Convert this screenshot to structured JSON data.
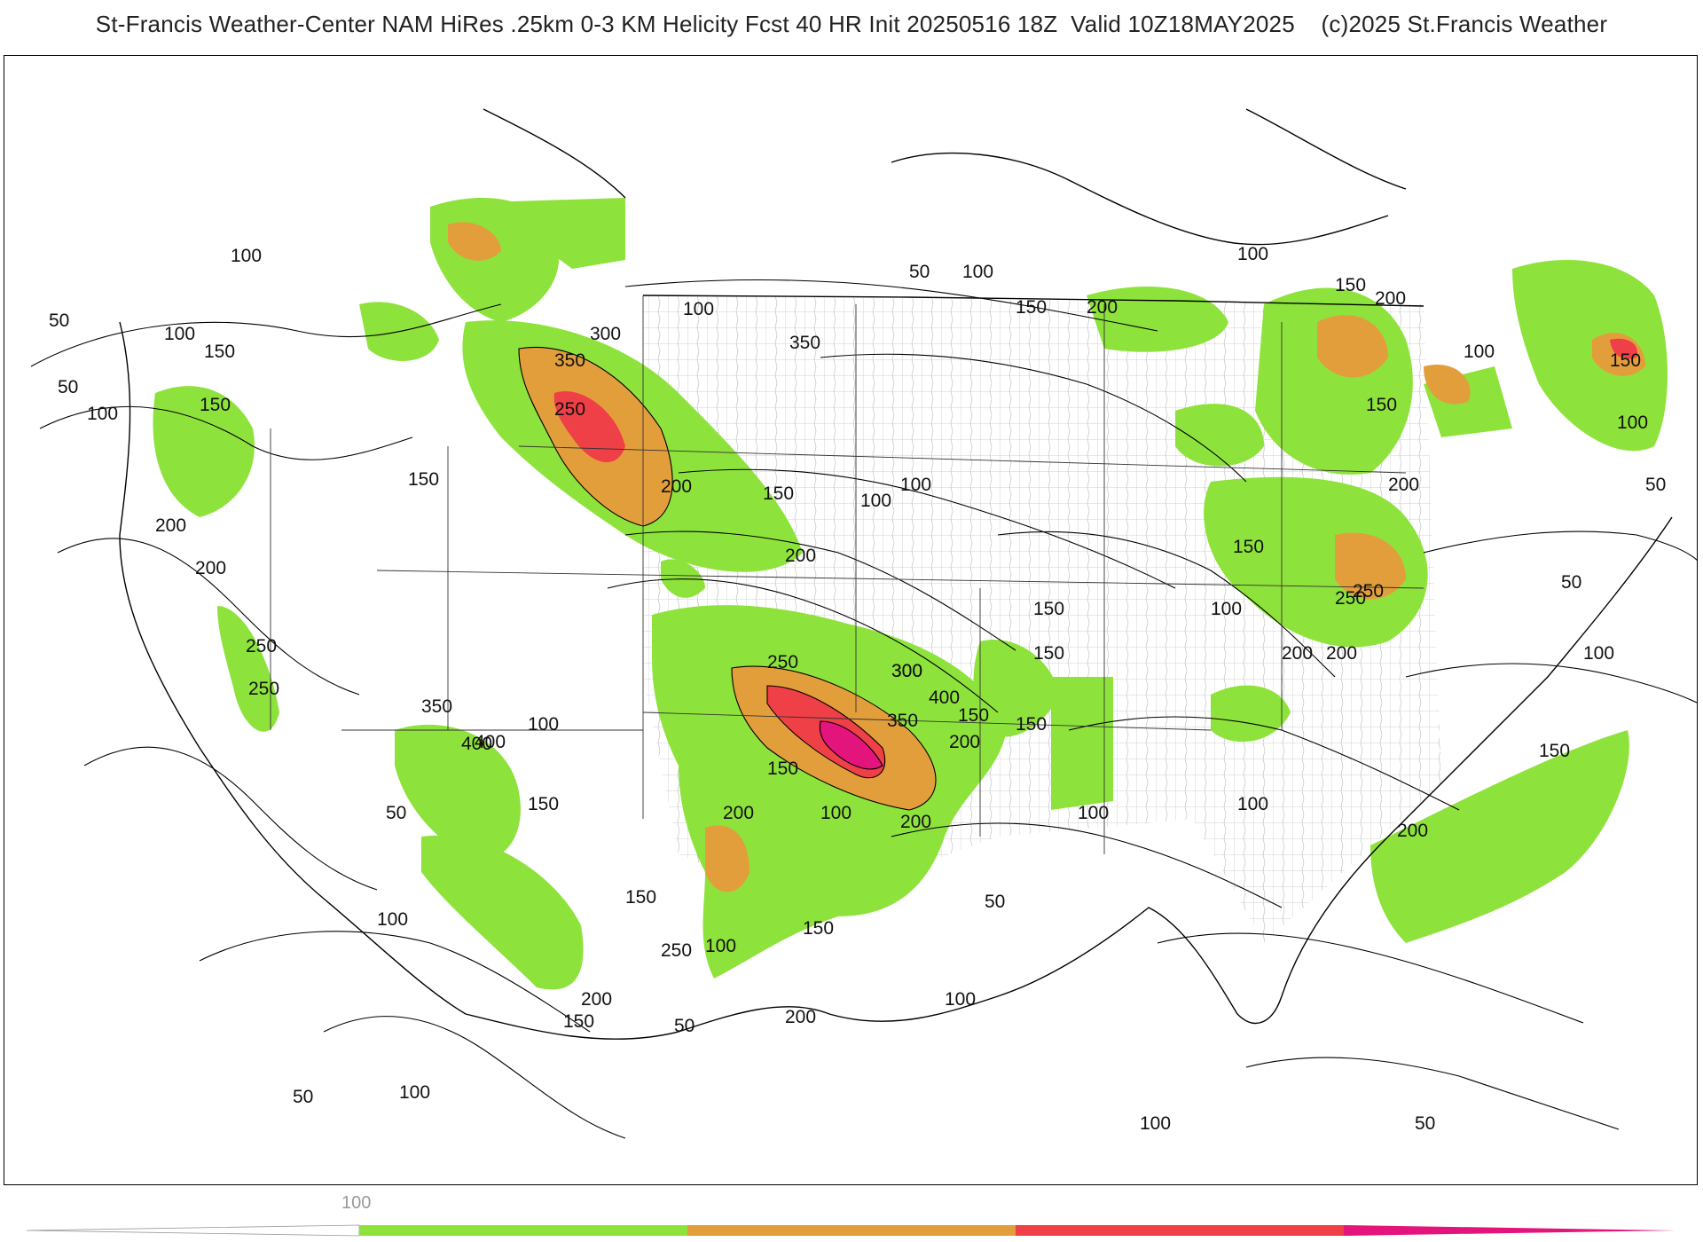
{
  "header": {
    "title": "St-Francis Weather-Center NAM HiRes .25km 0-3 KM Helicity Fcst 40 HR Init 20250516 18Z  Valid 10Z18MAY2025    (c)2025 St.Francis Weather"
  },
  "colors": {
    "level_100_200": "#8ee23c",
    "level_200_300": "#e39e3c",
    "level_300_400": "#ef3f47",
    "level_400_plus": "#e3147b",
    "contour": "#000000",
    "county_lines": "#b9b9b9"
  },
  "colorbar": {
    "label": "100",
    "bins": [
      {
        "min": 0,
        "max": 100,
        "color": "#ffffff"
      },
      {
        "min": 100,
        "max": 200,
        "color": "#8ee23c"
      },
      {
        "min": 200,
        "max": 300,
        "color": "#e39e3c"
      },
      {
        "min": 300,
        "max": 400,
        "color": "#ef3f47"
      },
      {
        "min": 400,
        "max": 500,
        "color": "#e3147b"
      }
    ]
  },
  "contour_labels": [
    "50",
    "100",
    "150",
    "200",
    "250",
    "300",
    "350",
    "400",
    "100",
    "150",
    "200",
    "250",
    "300",
    "350",
    "50",
    "100",
    "150",
    "200",
    "250",
    "100",
    "150",
    "200",
    "100",
    "150",
    "200",
    "50",
    "100",
    "150",
    "200",
    "250",
    "350",
    "400",
    "100",
    "150",
    "200",
    "150",
    "100",
    "50",
    "100",
    "150",
    "200",
    "250",
    "100",
    "150",
    "200",
    "100",
    "50",
    "100",
    "150",
    "200",
    "250",
    "300",
    "350",
    "400",
    "150",
    "200",
    "100",
    "150",
    "50",
    "100",
    "150",
    "200",
    "100",
    "150",
    "200",
    "250",
    "50",
    "100",
    "150",
    "200",
    "100",
    "150",
    "50",
    "100",
    "100",
    "150",
    "200",
    "50",
    "100",
    "150",
    "100",
    "50"
  ]
}
